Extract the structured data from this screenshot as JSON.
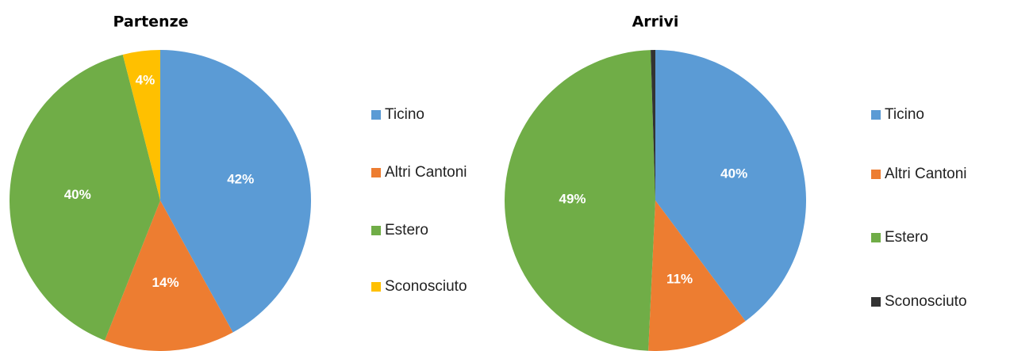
{
  "chart_data": [
    {
      "type": "pie",
      "title": "Partenze",
      "categories": [
        "Ticino",
        "Altri Cantoni",
        "Estero",
        "Sconosciuto"
      ],
      "values": [
        42,
        14,
        40,
        4
      ],
      "value_labels": [
        "42%",
        "14%",
        "40%",
        "4%"
      ],
      "colors": [
        "#5b9bd5",
        "#ed7d31",
        "#70ad47",
        "#ffc000"
      ],
      "legend": "right"
    },
    {
      "type": "pie",
      "title": "Arrivi",
      "categories": [
        "Ticino",
        "Altri Cantoni",
        "Estero",
        "Sconosciuto"
      ],
      "values": [
        40,
        11,
        49,
        0.5
      ],
      "value_labels": [
        "40%",
        "11%",
        "49%",
        null
      ],
      "colors": [
        "#5b9bd5",
        "#ed7d31",
        "#70ad47",
        "#333333"
      ],
      "legend": "right"
    }
  ]
}
